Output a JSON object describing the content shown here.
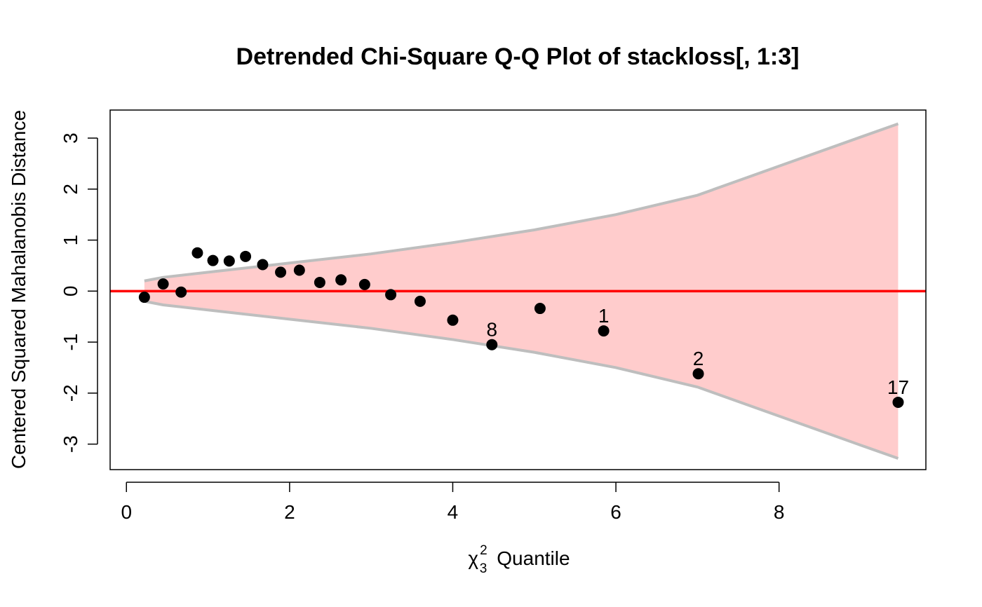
{
  "chart_data": {
    "type": "scatter",
    "title": "Detrended Chi-Square Q-Q Plot of stackloss[, 1:3]",
    "xlabel": {
      "symbol": "χ",
      "superscript": "2",
      "subscript": "3",
      "text": "Quantile"
    },
    "ylabel": "Centered Squared Mahalanobis Distance",
    "xlim": [
      -0.2,
      9.8
    ],
    "ylim": [
      -3.5,
      3.55
    ],
    "xticks": [
      0,
      2,
      4,
      6,
      8
    ],
    "yticks": [
      -3,
      -2,
      -1,
      0,
      1,
      2,
      3
    ],
    "xtick_labels": [
      "0",
      "2",
      "4",
      "6",
      "8"
    ],
    "ytick_labels": [
      "-3",
      "-2",
      "-1",
      "0",
      "1",
      "2",
      "3"
    ],
    "grid": false,
    "legend": "none",
    "reference_line": {
      "y": 0,
      "color": "#ff0000"
    },
    "band": {
      "fill_color": "#ffcccc",
      "edge_color": "#bebebe",
      "x": [
        0.22,
        0.45,
        1.0,
        2.0,
        3.0,
        4.0,
        5.0,
        6.0,
        7.0,
        8.0,
        9.0,
        9.46
      ],
      "upper": [
        0.2,
        0.27,
        0.37,
        0.55,
        0.73,
        0.95,
        1.2,
        1.5,
        1.88,
        2.45,
        3.02,
        3.28
      ],
      "lower": [
        -0.2,
        -0.27,
        -0.37,
        -0.55,
        -0.73,
        -0.95,
        -1.2,
        -1.5,
        -1.88,
        -2.45,
        -3.02,
        -3.28
      ]
    },
    "point_color": "#000000",
    "points": [
      {
        "x": 0.22,
        "y": -0.12,
        "label": ""
      },
      {
        "x": 0.45,
        "y": 0.14,
        "label": ""
      },
      {
        "x": 0.67,
        "y": -0.02,
        "label": ""
      },
      {
        "x": 0.87,
        "y": 0.75,
        "label": ""
      },
      {
        "x": 1.06,
        "y": 0.6,
        "label": ""
      },
      {
        "x": 1.26,
        "y": 0.59,
        "label": ""
      },
      {
        "x": 1.46,
        "y": 0.68,
        "label": ""
      },
      {
        "x": 1.67,
        "y": 0.52,
        "label": ""
      },
      {
        "x": 1.89,
        "y": 0.37,
        "label": ""
      },
      {
        "x": 2.12,
        "y": 0.41,
        "label": ""
      },
      {
        "x": 2.37,
        "y": 0.17,
        "label": ""
      },
      {
        "x": 2.63,
        "y": 0.22,
        "label": ""
      },
      {
        "x": 2.92,
        "y": 0.13,
        "label": ""
      },
      {
        "x": 3.24,
        "y": -0.07,
        "label": ""
      },
      {
        "x": 3.6,
        "y": -0.2,
        "label": ""
      },
      {
        "x": 4.0,
        "y": -0.57,
        "label": ""
      },
      {
        "x": 4.48,
        "y": -1.05,
        "label": "8"
      },
      {
        "x": 5.07,
        "y": -0.34,
        "label": ""
      },
      {
        "x": 5.85,
        "y": -0.78,
        "label": "1"
      },
      {
        "x": 7.01,
        "y": -1.62,
        "label": "2"
      },
      {
        "x": 9.46,
        "y": -2.18,
        "label": "17"
      }
    ]
  }
}
